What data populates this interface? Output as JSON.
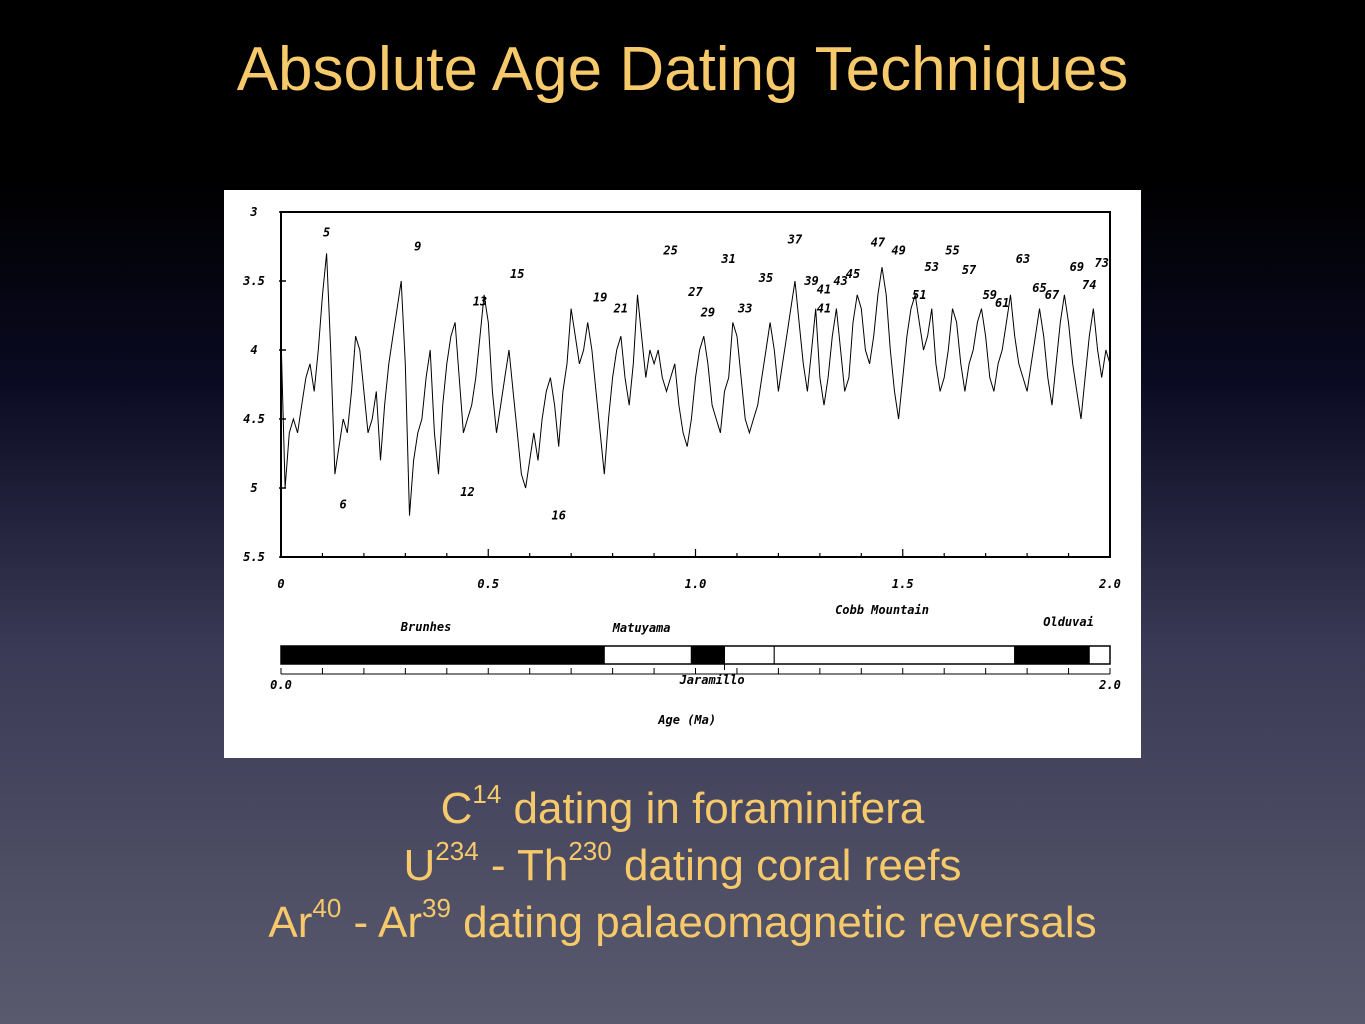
{
  "slide": {
    "title": "Absolute Age Dating Techniques",
    "title_color": "#F6C96A"
  },
  "bullets": [
    {
      "parts": [
        "C",
        "14",
        " dating in foraminifera"
      ]
    },
    {
      "parts": [
        "U",
        "234",
        " - Th",
        "230",
        " dating coral reefs"
      ]
    },
    {
      "parts": [
        "Ar",
        "40",
        " - Ar",
        "39",
        " dating palaeomagnetic reversals"
      ]
    }
  ],
  "chart_data": {
    "type": "line",
    "x_ticks": [
      "0",
      "0.5",
      "1.0",
      "1.5",
      "2.0"
    ],
    "x_tick_values": [
      0,
      0.5,
      1.0,
      1.5,
      2.0
    ],
    "y_ticks": [
      "3",
      "3.5",
      "4",
      "4.5",
      "5",
      "5.5"
    ],
    "y_tick_values": [
      3,
      3.5,
      4,
      4.5,
      5,
      5.5
    ],
    "xlim": [
      0,
      2.0
    ],
    "ylim_inverted": [
      3,
      5.5
    ],
    "series": [
      {
        "x": [
          0.0,
          0.01,
          0.02,
          0.03,
          0.04,
          0.05,
          0.06,
          0.07,
          0.08,
          0.09,
          0.1,
          0.11,
          0.12,
          0.13,
          0.14,
          0.15,
          0.16,
          0.17,
          0.18,
          0.19,
          0.2,
          0.21,
          0.22,
          0.23,
          0.24,
          0.25,
          0.26,
          0.27,
          0.28,
          0.29,
          0.3,
          0.31,
          0.32,
          0.33,
          0.34,
          0.35,
          0.36,
          0.37,
          0.38,
          0.39,
          0.4,
          0.41,
          0.42,
          0.43,
          0.44,
          0.45,
          0.46,
          0.47,
          0.48,
          0.49,
          0.5,
          0.51,
          0.52,
          0.53,
          0.54,
          0.55,
          0.56,
          0.57,
          0.58,
          0.59,
          0.6,
          0.61,
          0.62,
          0.63,
          0.64,
          0.65,
          0.66,
          0.67,
          0.68,
          0.69,
          0.7,
          0.71,
          0.72,
          0.73,
          0.74,
          0.75,
          0.76,
          0.77,
          0.78,
          0.79,
          0.8,
          0.81,
          0.82,
          0.83,
          0.84,
          0.85,
          0.86,
          0.87,
          0.88,
          0.89,
          0.9,
          0.91,
          0.92,
          0.93,
          0.94,
          0.95,
          0.96,
          0.97,
          0.98,
          0.99,
          1.0,
          1.01,
          1.02,
          1.03,
          1.04,
          1.05,
          1.06,
          1.07,
          1.08,
          1.09,
          1.1,
          1.11,
          1.12,
          1.13,
          1.14,
          1.15,
          1.16,
          1.17,
          1.18,
          1.19,
          1.2,
          1.21,
          1.22,
          1.23,
          1.24,
          1.25,
          1.26,
          1.27,
          1.28,
          1.29,
          1.3,
          1.31,
          1.32,
          1.33,
          1.34,
          1.35,
          1.36,
          1.37,
          1.38,
          1.39,
          1.4,
          1.41,
          1.42,
          1.43,
          1.44,
          1.45,
          1.46,
          1.47,
          1.48,
          1.49,
          1.5,
          1.51,
          1.52,
          1.53,
          1.54,
          1.55,
          1.56,
          1.57,
          1.58,
          1.59,
          1.6,
          1.61,
          1.62,
          1.63,
          1.64,
          1.65,
          1.66,
          1.67,
          1.68,
          1.69,
          1.7,
          1.71,
          1.72,
          1.73,
          1.74,
          1.75,
          1.76,
          1.77,
          1.78,
          1.79,
          1.8,
          1.81,
          1.82,
          1.83,
          1.84,
          1.85,
          1.86,
          1.87,
          1.88,
          1.89,
          1.9,
          1.91,
          1.92,
          1.93,
          1.94,
          1.95,
          1.96,
          1.97,
          1.98,
          1.99,
          2.0
        ],
        "y": [
          3.9,
          5.0,
          4.6,
          4.5,
          4.6,
          4.4,
          4.2,
          4.1,
          4.3,
          4.0,
          3.6,
          3.3,
          4.0,
          4.9,
          4.7,
          4.5,
          4.6,
          4.3,
          3.9,
          4.0,
          4.3,
          4.6,
          4.5,
          4.3,
          4.8,
          4.4,
          4.1,
          3.9,
          3.7,
          3.5,
          4.1,
          5.2,
          4.8,
          4.6,
          4.5,
          4.2,
          4.0,
          4.6,
          4.9,
          4.4,
          4.1,
          3.9,
          3.8,
          4.2,
          4.6,
          4.5,
          4.4,
          4.2,
          3.9,
          3.6,
          3.8,
          4.3,
          4.6,
          4.4,
          4.2,
          4.0,
          4.3,
          4.6,
          4.9,
          5.0,
          4.8,
          4.6,
          4.8,
          4.5,
          4.3,
          4.2,
          4.4,
          4.7,
          4.3,
          4.1,
          3.7,
          3.9,
          4.1,
          4.0,
          3.8,
          4.0,
          4.3,
          4.6,
          4.9,
          4.5,
          4.2,
          4.0,
          3.9,
          4.2,
          4.4,
          4.1,
          3.6,
          3.9,
          4.2,
          4.0,
          4.1,
          4.0,
          4.2,
          4.3,
          4.2,
          4.1,
          4.4,
          4.6,
          4.7,
          4.5,
          4.2,
          4.0,
          3.9,
          4.1,
          4.4,
          4.5,
          4.6,
          4.3,
          4.2,
          3.8,
          3.9,
          4.2,
          4.5,
          4.6,
          4.5,
          4.4,
          4.2,
          4.0,
          3.8,
          4.0,
          4.3,
          4.1,
          3.9,
          3.7,
          3.5,
          3.8,
          4.1,
          4.3,
          4.0,
          3.7,
          4.2,
          4.4,
          4.2,
          3.9,
          3.7,
          4.0,
          4.3,
          4.2,
          3.8,
          3.6,
          3.7,
          4.0,
          4.1,
          3.9,
          3.6,
          3.4,
          3.6,
          4.0,
          4.3,
          4.5,
          4.2,
          3.9,
          3.7,
          3.6,
          3.8,
          4.0,
          3.9,
          3.7,
          4.1,
          4.3,
          4.2,
          4.0,
          3.7,
          3.8,
          4.1,
          4.3,
          4.1,
          4.0,
          3.8,
          3.7,
          3.9,
          4.2,
          4.3,
          4.1,
          4.0,
          3.8,
          3.6,
          3.9,
          4.1,
          4.2,
          4.3,
          4.1,
          3.9,
          3.7,
          3.9,
          4.2,
          4.4,
          4.1,
          3.8,
          3.6,
          3.8,
          4.1,
          4.3,
          4.5,
          4.2,
          3.9,
          3.7,
          4.0,
          4.2,
          4.0,
          4.1
        ]
      }
    ],
    "stage_labels": [
      {
        "text": "5",
        "x": 0.11,
        "y": 3.15
      },
      {
        "text": "9",
        "x": 0.33,
        "y": 3.25
      },
      {
        "text": "13",
        "x": 0.48,
        "y": 3.65
      },
      {
        "text": "15",
        "x": 0.57,
        "y": 3.45
      },
      {
        "text": "6",
        "x": 0.15,
        "y": 5.12
      },
      {
        "text": "12",
        "x": 0.45,
        "y": 5.03
      },
      {
        "text": "16",
        "x": 0.67,
        "y": 5.2
      },
      {
        "text": "19",
        "x": 0.77,
        "y": 3.62
      },
      {
        "text": "21",
        "x": 0.82,
        "y": 3.7
      },
      {
        "text": "25",
        "x": 0.94,
        "y": 3.28
      },
      {
        "text": "27",
        "x": 1.0,
        "y": 3.58
      },
      {
        "text": "29",
        "x": 1.03,
        "y": 3.73
      },
      {
        "text": "31",
        "x": 1.08,
        "y": 3.34
      },
      {
        "text": "33",
        "x": 1.12,
        "y": 3.7
      },
      {
        "text": "35",
        "x": 1.17,
        "y": 3.48
      },
      {
        "text": "37",
        "x": 1.24,
        "y": 3.2
      },
      {
        "text": "39",
        "x": 1.28,
        "y": 3.5
      },
      {
        "text": "41",
        "x": 1.31,
        "y": 3.56
      },
      {
        "text": "41",
        "x": 1.31,
        "y": 3.7
      },
      {
        "text": "43",
        "x": 1.35,
        "y": 3.5
      },
      {
        "text": "45",
        "x": 1.38,
        "y": 3.45
      },
      {
        "text": "47",
        "x": 1.44,
        "y": 3.22
      },
      {
        "text": "49",
        "x": 1.49,
        "y": 3.28
      },
      {
        "text": "51",
        "x": 1.54,
        "y": 3.6
      },
      {
        "text": "53",
        "x": 1.57,
        "y": 3.4
      },
      {
        "text": "55",
        "x": 1.62,
        "y": 3.28
      },
      {
        "text": "57",
        "x": 1.66,
        "y": 3.42
      },
      {
        "text": "59",
        "x": 1.71,
        "y": 3.6
      },
      {
        "text": "61",
        "x": 1.74,
        "y": 3.66
      },
      {
        "text": "63",
        "x": 1.79,
        "y": 3.34
      },
      {
        "text": "65",
        "x": 1.83,
        "y": 3.55
      },
      {
        "text": "67",
        "x": 1.86,
        "y": 3.6
      },
      {
        "text": "69",
        "x": 1.92,
        "y": 3.4
      },
      {
        "text": "73",
        "x": 1.98,
        "y": 3.37
      },
      {
        "text": "74",
        "x": 1.95,
        "y": 3.53
      }
    ],
    "polarity": {
      "scale_labels": [
        "0.0",
        "2.0"
      ],
      "scale_values": [
        0.0,
        2.0
      ],
      "xlabel": "Age (Ma)",
      "blocks": [
        {
          "start": 0.0,
          "end": 0.78,
          "fill": "black"
        },
        {
          "start": 0.78,
          "end": 0.99,
          "fill": "white"
        },
        {
          "start": 0.99,
          "end": 1.07,
          "fill": "black"
        },
        {
          "start": 1.07,
          "end": 1.19,
          "fill": "white"
        },
        {
          "start": 1.19,
          "end": 1.77,
          "fill": "white"
        },
        {
          "start": 1.77,
          "end": 1.95,
          "fill": "black"
        },
        {
          "start": 1.95,
          "end": 2.0,
          "fill": "white"
        }
      ],
      "chrons": [
        {
          "text": "Brunhes",
          "x": 0.35
        },
        {
          "text": "Matuyama",
          "x": 0.87
        },
        {
          "text": "Cobb Mountain",
          "x": 1.45
        },
        {
          "text": "Olduvai",
          "x": 1.9
        },
        {
          "text": "Jaramillo",
          "x": 1.04
        }
      ]
    }
  }
}
